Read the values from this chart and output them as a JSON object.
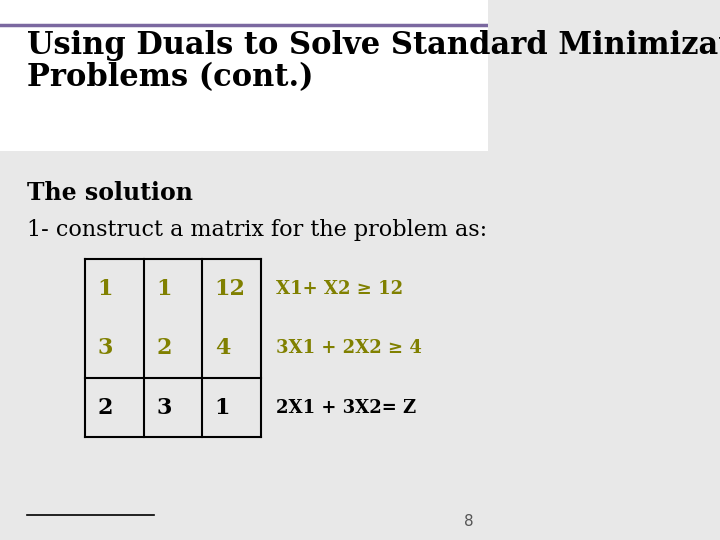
{
  "title_line1": "Using Duals to Solve Standard Minimization",
  "title_line2": "Problems (cont.)",
  "title_fontsize": 22,
  "title_color": "#000000",
  "bg_color": "#e8e8e8",
  "header_bg": "#ffffff",
  "divider_color_top": "#7B68A0",
  "section_label": "The solution",
  "section_fontsize": 17,
  "section_color": "#000000",
  "body_text": "1- construct a matrix for the problem as:",
  "body_fontsize": 16,
  "body_color": "#000000",
  "matrix_data": [
    [
      "1",
      "1",
      "12"
    ],
    [
      "3",
      "2",
      "4"
    ],
    [
      "2",
      "3",
      "1"
    ]
  ],
  "matrix_colors": [
    [
      "#808000",
      "#808000",
      "#808000"
    ],
    [
      "#808000",
      "#808000",
      "#808000"
    ],
    [
      "#000000",
      "#000000",
      "#000000"
    ]
  ],
  "matrix_annotations": [
    "X1+ X2 ≥ 12",
    "3X1 + 2X2 ≥ 4",
    "2X1 + 3X2= Z"
  ],
  "annotation_colors": [
    "#808000",
    "#808000",
    "#000000"
  ],
  "annotation_fontsize": 13,
  "matrix_fontsize": 16,
  "page_number": "8",
  "page_num_color": "#555555",
  "page_num_fontsize": 11
}
